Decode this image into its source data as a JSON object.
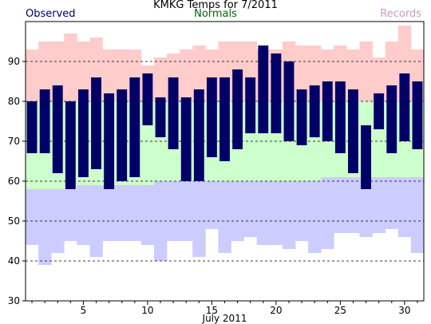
{
  "chart_data": {
    "type": "bar",
    "title": "KMKG Temps for 7/2011",
    "xlabel": "July 2011",
    "ylabel": "",
    "xlim": [
      0.5,
      31.5
    ],
    "ylim": [
      30,
      100
    ],
    "y_ticks": [
      30,
      40,
      50,
      60,
      70,
      80,
      90
    ],
    "x_ticks": [
      5,
      10,
      15,
      20,
      25,
      30
    ],
    "gridlines": "dashed at 40, 50, 60, 70, 80, 90",
    "legend": {
      "observed": "Observed",
      "normals": "Normals",
      "records": "Records"
    },
    "colors": {
      "observed": "#000066",
      "normal_band": "#ccffcc",
      "record_high_band": "#ffcccc",
      "record_low_band": "#ccccff",
      "normals_label": "#006600",
      "records_label": "#cc99cc"
    },
    "days": [
      1,
      2,
      3,
      4,
      5,
      6,
      7,
      8,
      9,
      10,
      11,
      12,
      13,
      14,
      15,
      16,
      17,
      18,
      19,
      20,
      21,
      22,
      23,
      24,
      25,
      26,
      27,
      28,
      29,
      30,
      31
    ],
    "series": [
      {
        "name": "Observed",
        "role": "observed",
        "high": [
          80,
          83,
          84,
          80,
          83,
          86,
          82,
          83,
          86,
          87,
          81,
          86,
          81,
          83,
          86,
          86,
          88,
          86,
          94,
          92,
          90,
          83,
          84,
          85,
          85,
          83,
          74,
          82,
          84,
          87,
          85
        ],
        "low": [
          67,
          67,
          62,
          58,
          61,
          63,
          58,
          60,
          61,
          74,
          71,
          68,
          60,
          60,
          66,
          65,
          68,
          72,
          72,
          72,
          70,
          69,
          71,
          70,
          67,
          62,
          58,
          73,
          67,
          70,
          68
        ]
      },
      {
        "name": "Normals",
        "role": "normals",
        "high": [
          80,
          80,
          80,
          80,
          80,
          80,
          80,
          80,
          80,
          80,
          80,
          80,
          80,
          80,
          80,
          80,
          80,
          80,
          80,
          80,
          80,
          80,
          80,
          80,
          80,
          80,
          80,
          80,
          80,
          80,
          80
        ],
        "low": [
          58,
          58,
          58,
          58,
          59,
          59,
          59,
          59,
          59,
          59,
          60,
          60,
          60,
          60,
          60,
          60,
          60,
          60,
          60,
          60,
          60,
          60,
          60,
          61,
          61,
          61,
          61,
          61,
          61,
          61,
          61
        ]
      },
      {
        "name": "Records",
        "role": "records",
        "high": [
          93,
          95,
          95,
          97,
          95,
          96,
          93,
          93,
          93,
          89,
          91,
          92,
          93,
          94,
          93,
          95,
          95,
          95,
          93,
          93,
          95,
          94,
          94,
          93,
          94,
          93,
          95,
          91,
          95,
          99,
          93
        ],
        "low": [
          44,
          39,
          42,
          45,
          44,
          41,
          45,
          45,
          45,
          44,
          40,
          45,
          45,
          41,
          48,
          42,
          45,
          46,
          44,
          44,
          43,
          45,
          42,
          43,
          47,
          47,
          46,
          47,
          48,
          46,
          42
        ]
      }
    ]
  }
}
